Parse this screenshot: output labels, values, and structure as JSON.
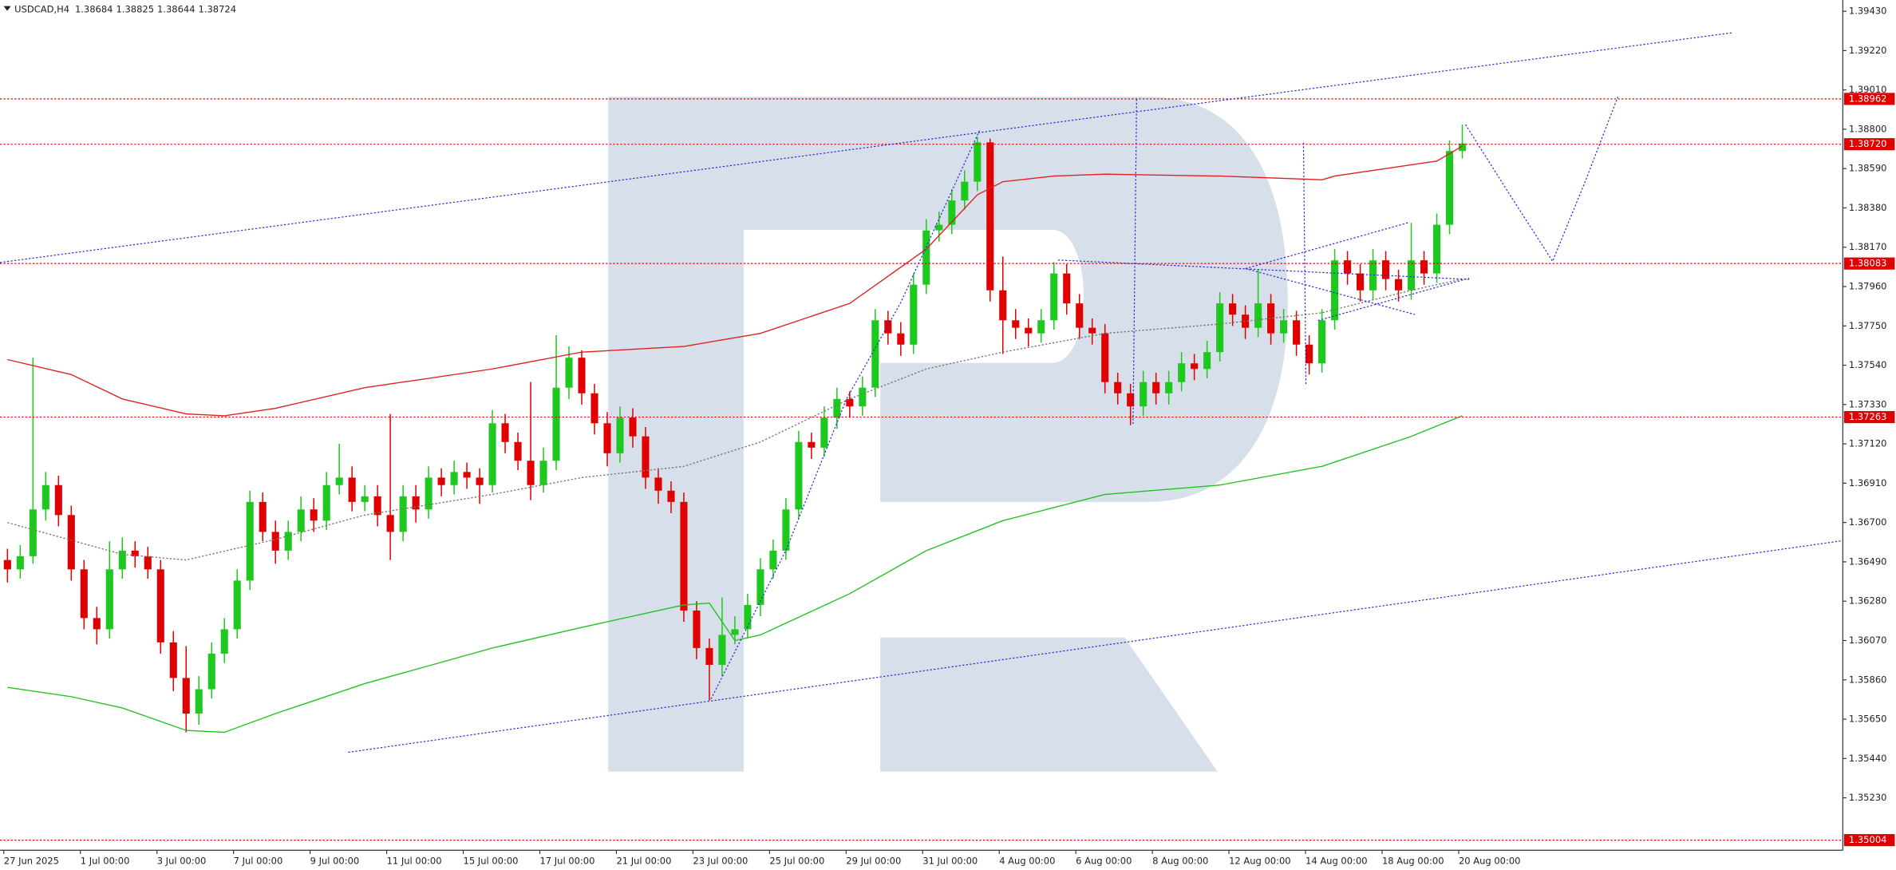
{
  "chart_data": {
    "type": "candlestick",
    "symbol": "USDCAD,H4",
    "up_color": "#1ec81e",
    "down_color": "#e00000",
    "open": [
      1.365,
      1.3645,
      1.3652,
      1.3677,
      1.369,
      1.3674,
      1.3645,
      1.3619,
      1.3613,
      1.3645,
      1.3655,
      1.3652,
      1.3645,
      1.3606,
      1.3587,
      1.3568,
      1.3581,
      1.36,
      1.3613,
      1.3639,
      1.3681,
      1.3665,
      1.3655,
      1.3665,
      1.3677,
      1.3671,
      1.369,
      1.3694,
      1.3681,
      1.3684,
      1.3674,
      1.3665,
      1.3684,
      1.3677,
      1.3694,
      1.369,
      1.3697,
      1.3694,
      1.369,
      1.3723,
      1.3713,
      1.3703,
      1.369,
      1.3703,
      1.3742,
      1.3758,
      1.3739,
      1.3723,
      1.3707,
      1.3726,
      1.3716,
      1.3694,
      1.3687,
      1.3681,
      1.3623,
      1.3603,
      1.3594,
      1.361,
      1.3613,
      1.3626,
      1.3645,
      1.3655,
      1.3677,
      1.3713,
      1.371,
      1.3726,
      1.3736,
      1.3732,
      1.3742,
      1.3778,
      1.3771,
      1.3765,
      1.3797,
      1.3826,
      1.3829,
      1.3842,
      1.3852,
      1.3873,
      1.3794,
      1.3778,
      1.3774,
      1.3771,
      1.3778,
      1.3803,
      1.3787,
      1.3774,
      1.3771,
      1.3745,
      1.3739,
      1.3732,
      1.3745,
      1.3739,
      1.3745,
      1.3755,
      1.3752,
      1.3761,
      1.3787,
      1.3781,
      1.3774,
      1.3787,
      1.3771,
      1.3778,
      1.3765,
      1.3755,
      1.3778,
      1.381,
      1.3803,
      1.3794,
      1.381,
      1.38,
      1.3794,
      1.381,
      1.3803,
      1.3829,
      1.38684
    ],
    "high": [
      1.3656,
      1.3658,
      1.3758,
      1.3697,
      1.3695,
      1.3679,
      1.365,
      1.3625,
      1.366,
      1.3662,
      1.366,
      1.3657,
      1.365,
      1.3612,
      1.3604,
      1.3588,
      1.3606,
      1.3619,
      1.3645,
      1.3687,
      1.3686,
      1.3671,
      1.3671,
      1.3684,
      1.3683,
      1.3697,
      1.3712,
      1.37,
      1.369,
      1.369,
      1.3728,
      1.369,
      1.369,
      1.37,
      1.3699,
      1.3703,
      1.3702,
      1.3699,
      1.373,
      1.3728,
      1.3718,
      1.3745,
      1.371,
      1.377,
      1.3764,
      1.3762,
      1.3744,
      1.3729,
      1.3732,
      1.3731,
      1.3721,
      1.3699,
      1.3692,
      1.3686,
      1.3628,
      1.3608,
      1.363,
      1.362,
      1.3632,
      1.3651,
      1.3661,
      1.3683,
      1.3719,
      1.3718,
      1.3732,
      1.3742,
      1.374,
      1.3748,
      1.3784,
      1.3783,
      1.3777,
      1.3803,
      1.3832,
      1.3836,
      1.3848,
      1.3858,
      1.3876,
      1.3875,
      1.3812,
      1.3784,
      1.3779,
      1.3784,
      1.3809,
      1.3808,
      1.3792,
      1.3779,
      1.3776,
      1.375,
      1.3744,
      1.3751,
      1.375,
      1.3751,
      1.3761,
      1.376,
      1.3767,
      1.3793,
      1.3792,
      1.3786,
      1.3805,
      1.3792,
      1.3784,
      1.3783,
      1.377,
      1.3784,
      1.3816,
      1.3815,
      1.3808,
      1.3816,
      1.3815,
      1.3805,
      1.383,
      1.3815,
      1.3835,
      1.3874,
      1.38825
    ],
    "low": [
      1.3638,
      1.364,
      1.3648,
      1.3671,
      1.3668,
      1.3639,
      1.3613,
      1.3605,
      1.3608,
      1.364,
      1.3646,
      1.364,
      1.36,
      1.358,
      1.3558,
      1.3562,
      1.3576,
      1.3595,
      1.3608,
      1.3634,
      1.366,
      1.3648,
      1.365,
      1.366,
      1.3665,
      1.3666,
      1.3685,
      1.3676,
      1.3676,
      1.3668,
      1.365,
      1.366,
      1.367,
      1.3672,
      1.3684,
      1.3685,
      1.3688,
      1.368,
      1.3686,
      1.3707,
      1.3698,
      1.3682,
      1.3686,
      1.3698,
      1.3736,
      1.3733,
      1.3717,
      1.37,
      1.3702,
      1.371,
      1.3688,
      1.368,
      1.3675,
      1.3617,
      1.3597,
      1.3575,
      1.3588,
      1.3605,
      1.3608,
      1.362,
      1.364,
      1.365,
      1.3672,
      1.3704,
      1.3705,
      1.372,
      1.3726,
      1.3727,
      1.3737,
      1.3765,
      1.3759,
      1.376,
      1.3792,
      1.382,
      1.3824,
      1.3837,
      1.3847,
      1.3788,
      1.376,
      1.3768,
      1.3764,
      1.3766,
      1.3773,
      1.3781,
      1.3768,
      1.3765,
      1.3739,
      1.3733,
      1.3722,
      1.3727,
      1.3733,
      1.3733,
      1.374,
      1.3746,
      1.3747,
      1.3756,
      1.3775,
      1.3768,
      1.3769,
      1.3765,
      1.3766,
      1.3759,
      1.3749,
      1.375,
      1.3773,
      1.3797,
      1.3788,
      1.3789,
      1.3794,
      1.3788,
      1.3789,
      1.3797,
      1.3798,
      1.3824,
      1.38644
    ],
    "close": [
      1.3645,
      1.3652,
      1.3677,
      1.369,
      1.3674,
      1.3645,
      1.3619,
      1.3613,
      1.3645,
      1.3655,
      1.3652,
      1.3645,
      1.3606,
      1.3587,
      1.3568,
      1.3581,
      1.36,
      1.3613,
      1.3639,
      1.3681,
      1.3665,
      1.3655,
      1.3665,
      1.3677,
      1.3671,
      1.369,
      1.3694,
      1.3681,
      1.3684,
      1.3674,
      1.3665,
      1.3684,
      1.3677,
      1.3694,
      1.369,
      1.3697,
      1.3694,
      1.369,
      1.3723,
      1.3713,
      1.3703,
      1.369,
      1.3703,
      1.3742,
      1.3758,
      1.3739,
      1.3723,
      1.3707,
      1.3726,
      1.3716,
      1.3694,
      1.3687,
      1.3681,
      1.3623,
      1.3603,
      1.3594,
      1.361,
      1.3613,
      1.3626,
      1.3645,
      1.3655,
      1.3677,
      1.3713,
      1.371,
      1.3726,
      1.3736,
      1.3732,
      1.3742,
      1.3778,
      1.3771,
      1.3765,
      1.3797,
      1.3826,
      1.3829,
      1.3842,
      1.3852,
      1.3873,
      1.3794,
      1.3778,
      1.3774,
      1.3771,
      1.3778,
      1.3803,
      1.3787,
      1.3774,
      1.3771,
      1.3745,
      1.3739,
      1.3732,
      1.3745,
      1.3739,
      1.3745,
      1.3755,
      1.3752,
      1.3761,
      1.3787,
      1.3781,
      1.3774,
      1.3787,
      1.3771,
      1.3778,
      1.3765,
      1.3755,
      1.3778,
      1.381,
      1.3803,
      1.3794,
      1.381,
      1.38,
      1.3794,
      1.381,
      1.3803,
      1.3829,
      1.38684,
      1.38724
    ],
    "xlim": [
      -0.3,
      144.1
    ],
    "ylim": [
      1.3495,
      1.3949
    ],
    "xticks": [
      {
        "value": 0,
        "label": "27 Jun 2025"
      },
      {
        "value": 6,
        "label": "1 Jul 00:00"
      },
      {
        "value": 12,
        "label": "3 Jul 00:00"
      },
      {
        "value": 18,
        "label": "7 Jul 00:00"
      },
      {
        "value": 24,
        "label": "9 Jul 00:00"
      },
      {
        "value": 30,
        "label": "11 Jul 00:00"
      },
      {
        "value": 36,
        "label": "15 Jul 00:00"
      },
      {
        "value": 42,
        "label": "17 Jul 00:00"
      },
      {
        "value": 48,
        "label": "21 Jul 00:00"
      },
      {
        "value": 54,
        "label": "23 Jul 00:00"
      },
      {
        "value": 60,
        "label": "25 Jul 00:00"
      },
      {
        "value": 66,
        "label": "29 Jul 00:00"
      },
      {
        "value": 72,
        "label": "31 Jul 00:00"
      },
      {
        "value": 78,
        "label": "4 Aug 00:00"
      },
      {
        "value": 84,
        "label": "6 Aug 00:00"
      },
      {
        "value": 90,
        "label": "8 Aug 00:00"
      },
      {
        "value": 96,
        "label": "12 Aug 00:00"
      },
      {
        "value": 102,
        "label": "14 Aug 00:00"
      },
      {
        "value": 108,
        "label": "18 Aug 00:00"
      },
      {
        "value": 114,
        "label": "20 Aug 00:00"
      }
    ],
    "yticks": [
      {
        "value": 1.3943,
        "label": "1.39430"
      },
      {
        "value": 1.3922,
        "label": "1.39220"
      },
      {
        "value": 1.3901,
        "label": "1.39010"
      },
      {
        "value": 1.388,
        "label": "1.38800"
      },
      {
        "value": 1.3859,
        "label": "1.38590"
      },
      {
        "value": 1.3838,
        "label": "1.38380"
      },
      {
        "value": 1.3817,
        "label": "1.38170"
      },
      {
        "value": 1.3796,
        "label": "1.37960"
      },
      {
        "value": 1.3775,
        "label": "1.37750"
      },
      {
        "value": 1.3754,
        "label": "1.37540"
      },
      {
        "value": 1.3733,
        "label": "1.37330"
      },
      {
        "value": 1.3712,
        "label": "1.37120"
      },
      {
        "value": 1.3691,
        "label": "1.36910"
      },
      {
        "value": 1.367,
        "label": "1.36700"
      },
      {
        "value": 1.3649,
        "label": "1.36490"
      },
      {
        "value": 1.3628,
        "label": "1.36280"
      },
      {
        "value": 1.3607,
        "label": "1.36070"
      },
      {
        "value": 1.3586,
        "label": "1.35860"
      },
      {
        "value": 1.3565,
        "label": "1.35650"
      },
      {
        "value": 1.3544,
        "label": "1.35440"
      },
      {
        "value": 1.3523,
        "label": "1.35230"
      }
    ],
    "level_color": "#e00000",
    "levels": [
      1.38962,
      {
        "value": 1.3872,
        "label": "1.38720"
      },
      1.38083,
      1.37263,
      1.35004
    ],
    "lines": [
      {
        "color": "#e02020",
        "style": "solid",
        "x": [
          0,
          5,
          9,
          14,
          17,
          21,
          28,
          38,
          45,
          53,
          59,
          66,
          72,
          76,
          78,
          82,
          86,
          95,
          103,
          104,
          112,
          114
        ],
        "values": [
          1.3757,
          1.3749,
          1.3736,
          1.3728,
          1.3727,
          1.3731,
          1.3742,
          1.3752,
          1.3761,
          1.3764,
          1.3771,
          1.3787,
          1.3816,
          1.3845,
          1.3852,
          1.3855,
          1.3856,
          1.3855,
          1.3853,
          1.3855,
          1.3863,
          1.3871
        ]
      },
      {
        "color": "#22c022",
        "style": "solid",
        "x": [
          0,
          5,
          9,
          14,
          17,
          21,
          28,
          38,
          45,
          53,
          55,
          57,
          59,
          66,
          72,
          78,
          86,
          95,
          103,
          110,
          114
        ],
        "values": [
          1.3582,
          1.3577,
          1.3571,
          1.3559,
          1.3558,
          1.3568,
          1.3584,
          1.3603,
          1.3614,
          1.3626,
          1.3627,
          1.3607,
          1.361,
          1.3632,
          1.3655,
          1.3671,
          1.3685,
          1.369,
          1.37,
          1.3716,
          1.3727
        ]
      },
      {
        "color": "#777777",
        "style": "dotted",
        "x": [
          0,
          9,
          14,
          21,
          28,
          38,
          45,
          53,
          59,
          66,
          72,
          78,
          86,
          95,
          103,
          110,
          114
        ],
        "values": [
          1.367,
          1.3653,
          1.365,
          1.3661,
          1.3674,
          1.3685,
          1.3694,
          1.37,
          1.3713,
          1.3736,
          1.3752,
          1.3761,
          1.3771,
          1.3776,
          1.3782,
          1.3794,
          1.38
        ]
      }
    ]
  }
}
